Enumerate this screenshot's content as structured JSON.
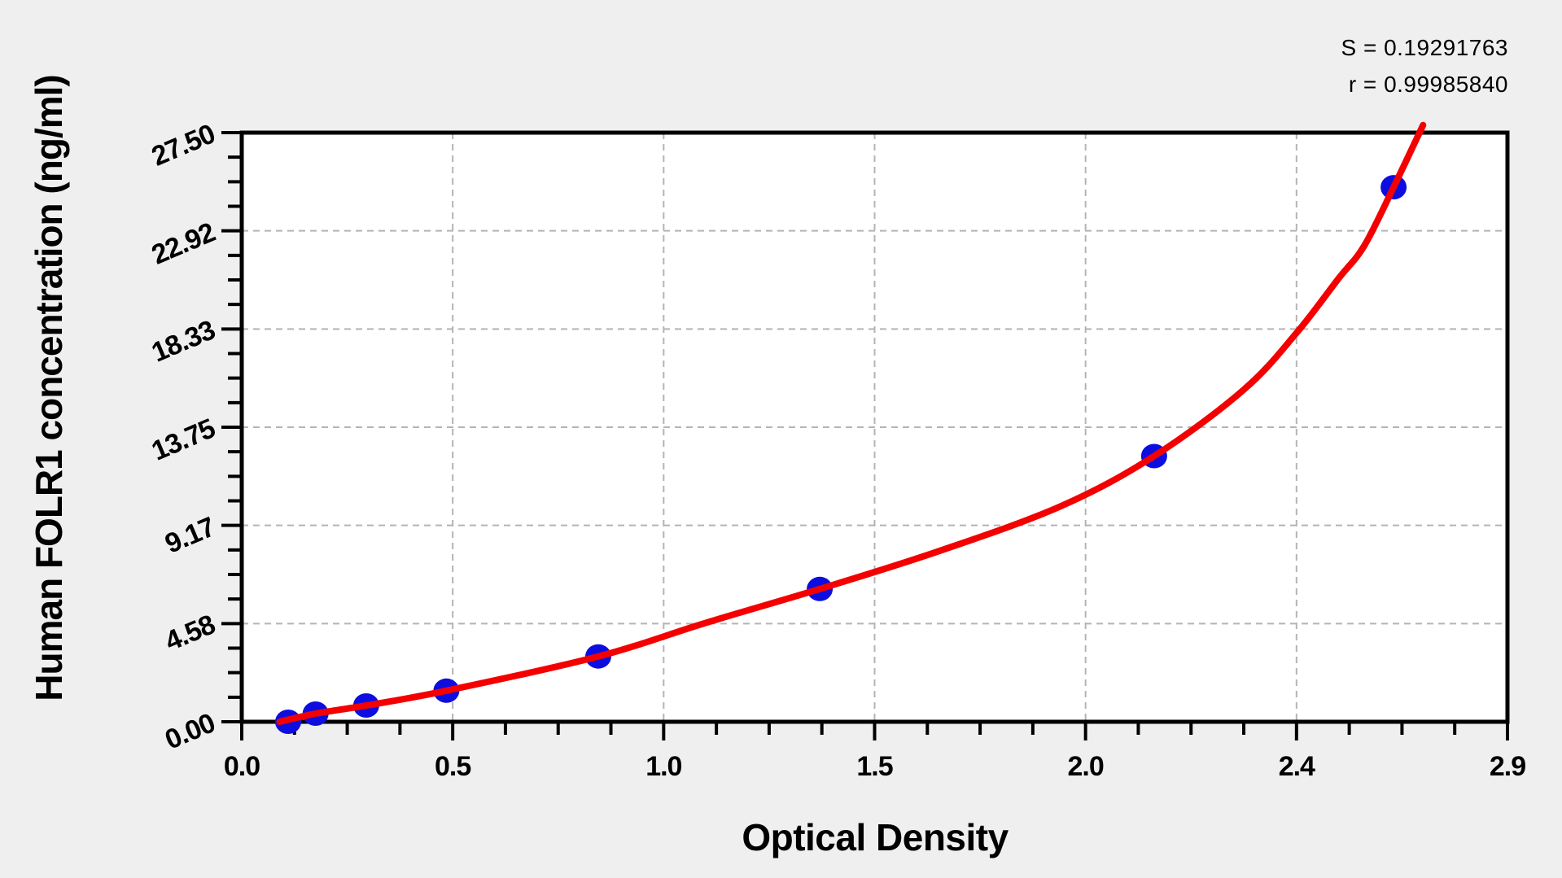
{
  "page": {
    "background": "#efefef",
    "plot_background": "#ffffff"
  },
  "stats": {
    "s": "S = 0.19291763",
    "r": "r = 0.99985840"
  },
  "chart_data": {
    "type": "scatter",
    "title": "",
    "xlabel": "Optical Density",
    "ylabel": "Human FOLR1 concentration (ng/ml)",
    "x_ticks": {
      "labels": [
        "0.0",
        "0.5",
        "1.0",
        "1.5",
        "2.0",
        "2.4",
        "2.9"
      ],
      "values": [
        0.0,
        0.5,
        1.0,
        1.5,
        2.0,
        2.4,
        2.9
      ]
    },
    "y_ticks": {
      "labels": [
        "0.00",
        "4.58",
        "9.17",
        "13.75",
        "18.33",
        "22.92",
        "27.50"
      ],
      "values": [
        0.0,
        4.58,
        9.17,
        13.75,
        18.33,
        22.92,
        27.5
      ]
    },
    "x_range": [
      0.0,
      2.9
    ],
    "y_range": [
      0.0,
      27.5
    ],
    "x_minor_divisions": 4,
    "y_minor_divisions": 4,
    "grid": "dashed-at-major-ticks",
    "legend": "none",
    "fit_stats": {
      "S": 0.19291763,
      "r": 0.9998584
    },
    "series": [
      {
        "name": "standard-points",
        "type": "scatter",
        "color": "#0d0de0",
        "points": [
          {
            "od": 0.11,
            "conc": 0.0
          },
          {
            "od": 0.175,
            "conc": 0.38
          },
          {
            "od": 0.295,
            "conc": 0.76
          },
          {
            "od": 0.485,
            "conc": 1.45
          },
          {
            "od": 0.845,
            "conc": 3.05
          },
          {
            "od": 1.37,
            "conc": 6.2
          },
          {
            "od": 2.13,
            "conc": 12.4
          },
          {
            "od": 2.63,
            "conc": 24.95
          }
        ]
      },
      {
        "name": "fitted-curve",
        "type": "line",
        "color": "#f40000",
        "points": [
          [
            0.09,
            0.0
          ],
          [
            0.175,
            0.38
          ],
          [
            0.295,
            0.76
          ],
          [
            0.485,
            1.45
          ],
          [
            0.845,
            3.05
          ],
          [
            1.1,
            4.62
          ],
          [
            1.37,
            6.2
          ],
          [
            1.65,
            7.95
          ],
          [
            1.94,
            10.05
          ],
          [
            2.13,
            12.4
          ],
          [
            2.3,
            15.5
          ],
          [
            2.4,
            18.15
          ],
          [
            2.5,
            20.7
          ],
          [
            2.56,
            22.2
          ],
          [
            2.63,
            24.95
          ],
          [
            2.7,
            27.85
          ]
        ]
      }
    ],
    "colors": {
      "curve": "#f40000",
      "points": "#0d0de0",
      "grid": "#b4b4b4",
      "frame": "#000000",
      "plot_bg": "#ffffff",
      "page_bg": "#efefef"
    }
  }
}
